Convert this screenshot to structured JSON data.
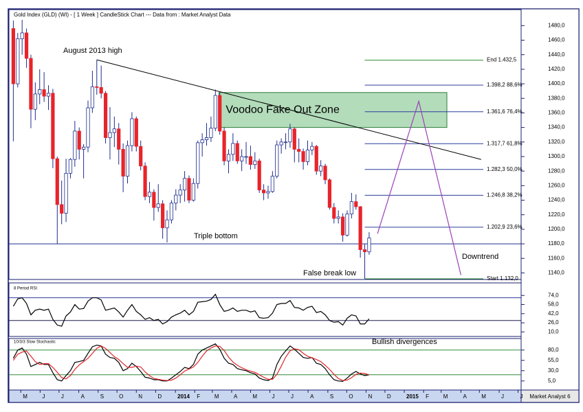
{
  "chart_data": [
    {
      "type": "candlestick",
      "title": "Gold Index (GLD) (WI) - [ 1 Week ] CandleStick Chart --- Data from : Market Analyst Data",
      "xlim": [
        -1,
        115.6
      ],
      "ylim": [
        1131,
        1502
      ],
      "yticks": [
        {
          "value": 1140,
          "label": "1140,0"
        },
        {
          "value": 1160,
          "label": "1160,0"
        },
        {
          "value": 1180,
          "label": "1180,0"
        },
        {
          "value": 1200,
          "label": "1200,0"
        },
        {
          "value": 1220,
          "label": "1220,0"
        },
        {
          "value": 1240,
          "label": "1240,0"
        },
        {
          "value": 1260,
          "label": "1260,0"
        },
        {
          "value": 1280,
          "label": "1280,0"
        },
        {
          "value": 1300,
          "label": "1300,0"
        },
        {
          "value": 1320,
          "label": "1320,0"
        },
        {
          "value": 1340,
          "label": "1340,0"
        },
        {
          "value": 1360,
          "label": "1360,0"
        },
        {
          "value": 1380,
          "label": "1380,0"
        },
        {
          "value": 1400,
          "label": "1400,0"
        },
        {
          "value": 1420,
          "label": "1420,0"
        },
        {
          "value": 1440,
          "label": "1440,0"
        },
        {
          "value": 1460,
          "label": "1460,0"
        },
        {
          "value": 1480,
          "label": "1480,0"
        }
      ],
      "up_color": "#ffffff",
      "down_color": "#e8242a",
      "wick_color": "#1c2c8c",
      "candles": {
        "open": [
          1476,
          1400,
          1462,
          1470,
          1435,
          1365,
          1386,
          1392,
          1383,
          1387,
          1297,
          1234,
          1222,
          1277,
          1296,
          1335,
          1310,
          1313,
          1367,
          1396,
          1395,
          1387,
          1326,
          1333,
          1338,
          1310,
          1273,
          1315,
          1352,
          1314,
          1287,
          1245,
          1251,
          1230,
          1235,
          1202,
          1213,
          1236,
          1247,
          1254,
          1270,
          1240,
          1263,
          1319,
          1323,
          1326,
          1339,
          1384,
          1335,
          1294,
          1303,
          1318,
          1294,
          1300,
          1300,
          1289,
          1294,
          1254,
          1250,
          1252,
          1273,
          1316,
          1320,
          1320,
          1338,
          1310,
          1307,
          1293,
          1309,
          1314,
          1280,
          1287,
          1268,
          1230,
          1215,
          1217,
          1192,
          1221,
          1238,
          1231,
          1172,
          1169
        ],
        "high": [
          1487,
          1470,
          1488,
          1476,
          1440,
          1402,
          1420,
          1416,
          1398,
          1393,
          1300,
          1267,
          1297,
          1298,
          1349,
          1340,
          1317,
          1377,
          1418,
          1433,
          1425,
          1390,
          1368,
          1355,
          1346,
          1318,
          1322,
          1361,
          1355,
          1322,
          1292,
          1265,
          1255,
          1262,
          1240,
          1226,
          1240,
          1255,
          1262,
          1280,
          1274,
          1270,
          1322,
          1332,
          1346,
          1355,
          1392,
          1388,
          1340,
          1310,
          1332,
          1322,
          1310,
          1320,
          1315,
          1306,
          1297,
          1262,
          1260,
          1280,
          1322,
          1325,
          1332,
          1345,
          1340,
          1325,
          1311,
          1322,
          1320,
          1316,
          1295,
          1290,
          1270,
          1236,
          1226,
          1222,
          1226,
          1250,
          1248,
          1232,
          1180,
          1196
        ],
        "low": [
          1321,
          1395,
          1440,
          1422,
          1339,
          1350,
          1372,
          1375,
          1364,
          1284,
          1180,
          1207,
          1210,
          1270,
          1286,
          1296,
          1270,
          1306,
          1360,
          1385,
          1380,
          1318,
          1296,
          1313,
          1289,
          1251,
          1263,
          1307,
          1307,
          1281,
          1240,
          1236,
          1212,
          1224,
          1187,
          1182,
          1208,
          1226,
          1236,
          1238,
          1236,
          1238,
          1256,
          1300,
          1315,
          1320,
          1335,
          1330,
          1288,
          1277,
          1294,
          1290,
          1280,
          1290,
          1282,
          1283,
          1250,
          1240,
          1242,
          1250,
          1270,
          1304,
          1310,
          1312,
          1292,
          1292,
          1282,
          1288,
          1302,
          1275,
          1273,
          1262,
          1227,
          1208,
          1208,
          1183,
          1190,
          1215,
          1227,
          1161,
          1132,
          1165
        ],
        "close": [
          1400,
          1462,
          1470,
          1435,
          1365,
          1386,
          1392,
          1383,
          1387,
          1297,
          1234,
          1222,
          1277,
          1296,
          1335,
          1310,
          1313,
          1367,
          1396,
          1395,
          1387,
          1326,
          1333,
          1338,
          1310,
          1273,
          1315,
          1352,
          1314,
          1287,
          1245,
          1251,
          1230,
          1235,
          1202,
          1213,
          1236,
          1247,
          1254,
          1270,
          1240,
          1263,
          1319,
          1323,
          1326,
          1339,
          1384,
          1335,
          1294,
          1303,
          1318,
          1294,
          1300,
          1300,
          1289,
          1294,
          1254,
          1250,
          1252,
          1273,
          1316,
          1320,
          1320,
          1338,
          1310,
          1307,
          1293,
          1309,
          1314,
          1280,
          1287,
          1268,
          1230,
          1215,
          1217,
          1192,
          1221,
          1238,
          1231,
          1172,
          1169,
          1188
        ]
      },
      "support": {
        "value": 1180,
        "color": "#1c2c8c"
      },
      "trendline": {
        "x": [
          19,
          106.5
        ],
        "y": [
          1433,
          1296
        ],
        "color": "#000000"
      },
      "zone": {
        "label": "Voodoo Fake Out Zone",
        "x": [
          46.8,
          98.7
        ],
        "y": [
          1340,
          1388
        ],
        "color": "#b3dcba",
        "border": "#2e7d3a"
      },
      "projection": {
        "x": [
          82.9,
          92.3,
          101.9
        ],
        "y": [
          1194,
          1376,
          1137
        ],
        "color": "#9b3fb5"
      },
      "fibonacci": {
        "x": [
          80,
          107
        ],
        "levels": [
          {
            "value": 1432.5,
            "label": "End 1.432,5",
            "color": "#2e8b3a"
          },
          {
            "value": 1398.2,
            "label": "1.398,2 88,6%",
            "color": "#2a3c9c"
          },
          {
            "value": 1361.6,
            "label": "1.361,6 76,4%",
            "color": "#2a3c9c"
          },
          {
            "value": 1317.7,
            "label": "1.317,7 61,8%",
            "color": "#2a3c9c"
          },
          {
            "value": 1282.3,
            "label": "1.282,3 50,0%",
            "color": "#2a3c9c"
          },
          {
            "value": 1246.8,
            "label": "1.246,8 38,2%",
            "color": "#2a3c9c"
          },
          {
            "value": 1202.9,
            "label": "1.202,9 23,6%",
            "color": "#2a3c9c"
          },
          {
            "value": 1132,
            "label": "Start 1.132,0",
            "color": "#2e8b3a"
          }
        ]
      },
      "annotations": [
        "August 2013 high",
        "Triple bottom",
        "False break low",
        "Downtrend"
      ]
    },
    {
      "type": "line",
      "title": "8 Period RSI",
      "xlim": [
        -1,
        115.6
      ],
      "ylim": [
        2,
        96
      ],
      "yticks": [
        {
          "value": 10,
          "label": "10,0"
        },
        {
          "value": 26,
          "label": "26,0"
        },
        {
          "value": 42,
          "label": "42,0"
        },
        {
          "value": 58,
          "label": "58,0"
        },
        {
          "value": 74,
          "label": "74,0"
        }
      ],
      "levels": [
        {
          "value": 70,
          "color": "#2a3c9c"
        },
        {
          "value": 30,
          "color": "#1c1c4c"
        }
      ],
      "series": [
        {
          "color": "#000000",
          "values": [
            55,
            68,
            70,
            60,
            40,
            48,
            50,
            48,
            50,
            32,
            22,
            20,
            38,
            45,
            58,
            50,
            51,
            64,
            70,
            70,
            66,
            48,
            50,
            52,
            45,
            36,
            48,
            58,
            46,
            40,
            32,
            35,
            30,
            32,
            24,
            28,
            36,
            40,
            43,
            48,
            40,
            46,
            62,
            63,
            64,
            67,
            76,
            58,
            46,
            48,
            52,
            46,
            48,
            48,
            45,
            47,
            35,
            34,
            35,
            43,
            58,
            60,
            60,
            65,
            53,
            52,
            48,
            53,
            55,
            44,
            46,
            40,
            30,
            27,
            28,
            22,
            34,
            40,
            38,
            24,
            24,
            33
          ]
        }
      ]
    },
    {
      "type": "line",
      "title": "10/3/3 Slow Stochastic",
      "xlim": [
        -1,
        115.6
      ],
      "ylim": [
        -17,
        108
      ],
      "yticks": [
        {
          "value": 5,
          "label": "5,0"
        },
        {
          "value": 30,
          "label": "30,0"
        },
        {
          "value": 55,
          "label": "55,0"
        },
        {
          "value": 80,
          "label": "80,0"
        }
      ],
      "levels": [
        {
          "value": 80,
          "color": "#2e8b3a"
        },
        {
          "value": 20,
          "color": "#2e8b3a"
        }
      ],
      "annotation": "Bullish divergences",
      "series": [
        {
          "color": "#000000",
          "values": [
            60,
            80,
            85,
            70,
            40,
            45,
            50,
            45,
            45,
            25,
            8,
            5,
            18,
            30,
            50,
            52,
            55,
            72,
            88,
            92,
            90,
            70,
            62,
            60,
            50,
            30,
            35,
            48,
            40,
            28,
            14,
            12,
            8,
            8,
            5,
            5,
            12,
            20,
            28,
            38,
            35,
            45,
            70,
            80,
            85,
            90,
            95,
            82,
            60,
            48,
            45,
            35,
            32,
            30,
            25,
            22,
            12,
            8,
            6,
            12,
            45,
            65,
            78,
            90,
            82,
            72,
            62,
            60,
            62,
            48,
            45,
            35,
            20,
            8,
            5,
            4,
            12,
            22,
            28,
            22,
            18,
            20
          ]
        },
        {
          "color": "#e0242a",
          "values": [
            55,
            70,
            75,
            78,
            65,
            52,
            45,
            47,
            47,
            38,
            26,
            13,
            10,
            18,
            33,
            44,
            52,
            60,
            72,
            84,
            90,
            84,
            74,
            64,
            57,
            47,
            38,
            38,
            41,
            39,
            27,
            18,
            11,
            9,
            7,
            6,
            7,
            12,
            20,
            29,
            34,
            39,
            50,
            65,
            78,
            85,
            90,
            89,
            79,
            63,
            51,
            43,
            37,
            32,
            29,
            26,
            20,
            14,
            9,
            9,
            21,
            41,
            63,
            78,
            83,
            81,
            72,
            65,
            61,
            57,
            52,
            43,
            33,
            21,
            11,
            6,
            7,
            13,
            21,
            24,
            23,
            20
          ]
        }
      ],
      "xticks": [
        {
          "value": 1.7,
          "label": "M"
        },
        {
          "value": 6.1,
          "label": "J"
        },
        {
          "value": 10.4,
          "label": "J"
        },
        {
          "value": 14.9,
          "label": "A"
        },
        {
          "value": 19.3,
          "label": "S"
        },
        {
          "value": 23.6,
          "label": "O"
        },
        {
          "value": 28.0,
          "label": "N"
        },
        {
          "value": 32.4,
          "label": "D"
        },
        {
          "value": 36.9,
          "label": "2014"
        },
        {
          "value": 41.3,
          "label": "F"
        },
        {
          "value": 45.3,
          "label": "M"
        },
        {
          "value": 49.7,
          "label": "A"
        },
        {
          "value": 54.0,
          "label": "M"
        },
        {
          "value": 58.4,
          "label": "J"
        },
        {
          "value": 62.7,
          "label": "J"
        },
        {
          "value": 67.1,
          "label": "A"
        },
        {
          "value": 71.6,
          "label": "S"
        },
        {
          "value": 75.9,
          "label": "O"
        },
        {
          "value": 80.3,
          "label": "N"
        },
        {
          "value": 84.6,
          "label": "D"
        },
        {
          "value": 89.0,
          "label": "2015"
        },
        {
          "value": 93.4,
          "label": "F"
        },
        {
          "value": 97.4,
          "label": "M"
        },
        {
          "value": 101.9,
          "label": "A"
        },
        {
          "value": 106.1,
          "label": "M"
        },
        {
          "value": 110.6,
          "label": "J"
        },
        {
          "value": 114.9,
          "label": "J"
        }
      ]
    }
  ],
  "footer": "Market Analyst 6"
}
